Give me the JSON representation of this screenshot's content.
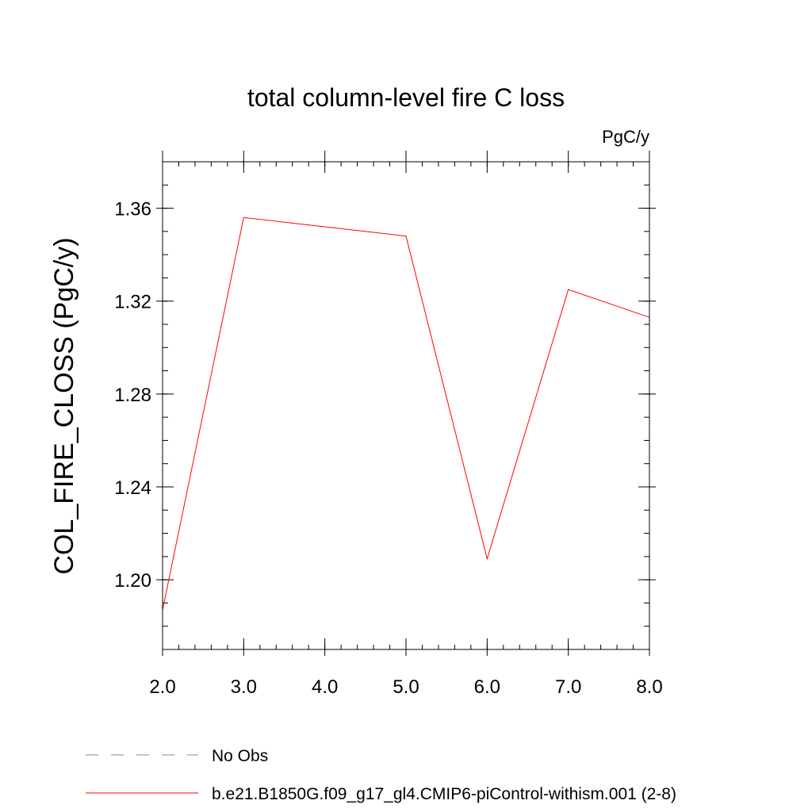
{
  "chart_data": {
    "type": "line",
    "title": "total column-level fire C loss",
    "units_label": "PgC/y",
    "ylabel": "COL_FIRE_CLOSS  (PgC/y)",
    "xlabel": "",
    "xlim": [
      2.0,
      8.0
    ],
    "ylim": [
      1.17,
      1.38
    ],
    "x_ticks": [
      {
        "value": 2.0,
        "label": "2.0"
      },
      {
        "value": 3.0,
        "label": "3.0"
      },
      {
        "value": 4.0,
        "label": "4.0"
      },
      {
        "value": 5.0,
        "label": "5.0"
      },
      {
        "value": 6.0,
        "label": "6.0"
      },
      {
        "value": 7.0,
        "label": "7.0"
      },
      {
        "value": 8.0,
        "label": "8.0"
      }
    ],
    "y_ticks": [
      {
        "value": 1.2,
        "label": "1.20"
      },
      {
        "value": 1.24,
        "label": "1.24"
      },
      {
        "value": 1.28,
        "label": "1.28"
      },
      {
        "value": 1.32,
        "label": "1.32"
      },
      {
        "value": 1.36,
        "label": "1.36"
      }
    ],
    "y_minor_step": 0.01,
    "x_minor_step": 0.2,
    "series": [
      {
        "name": "b.e21.B1850G.f09_g17_gl4.CMIP6-piControl-withism.001 (2-8)",
        "color": "#ff0000",
        "x": [
          2.0,
          3.0,
          4.0,
          5.0,
          6.0,
          7.0,
          8.0
        ],
        "y": [
          1.187,
          1.356,
          1.352,
          1.348,
          1.209,
          1.325,
          1.313
        ]
      }
    ],
    "legend": {
      "placement": "bottom-left",
      "entries": [
        {
          "label": "No Obs",
          "color": "#8a7fb5",
          "style": "dashed"
        },
        {
          "label": "b.e21.B1850G.f09_g17_gl4.CMIP6-piControl-withism.001 (2-8)",
          "color": "#ff0000",
          "style": "solid"
        }
      ]
    }
  }
}
